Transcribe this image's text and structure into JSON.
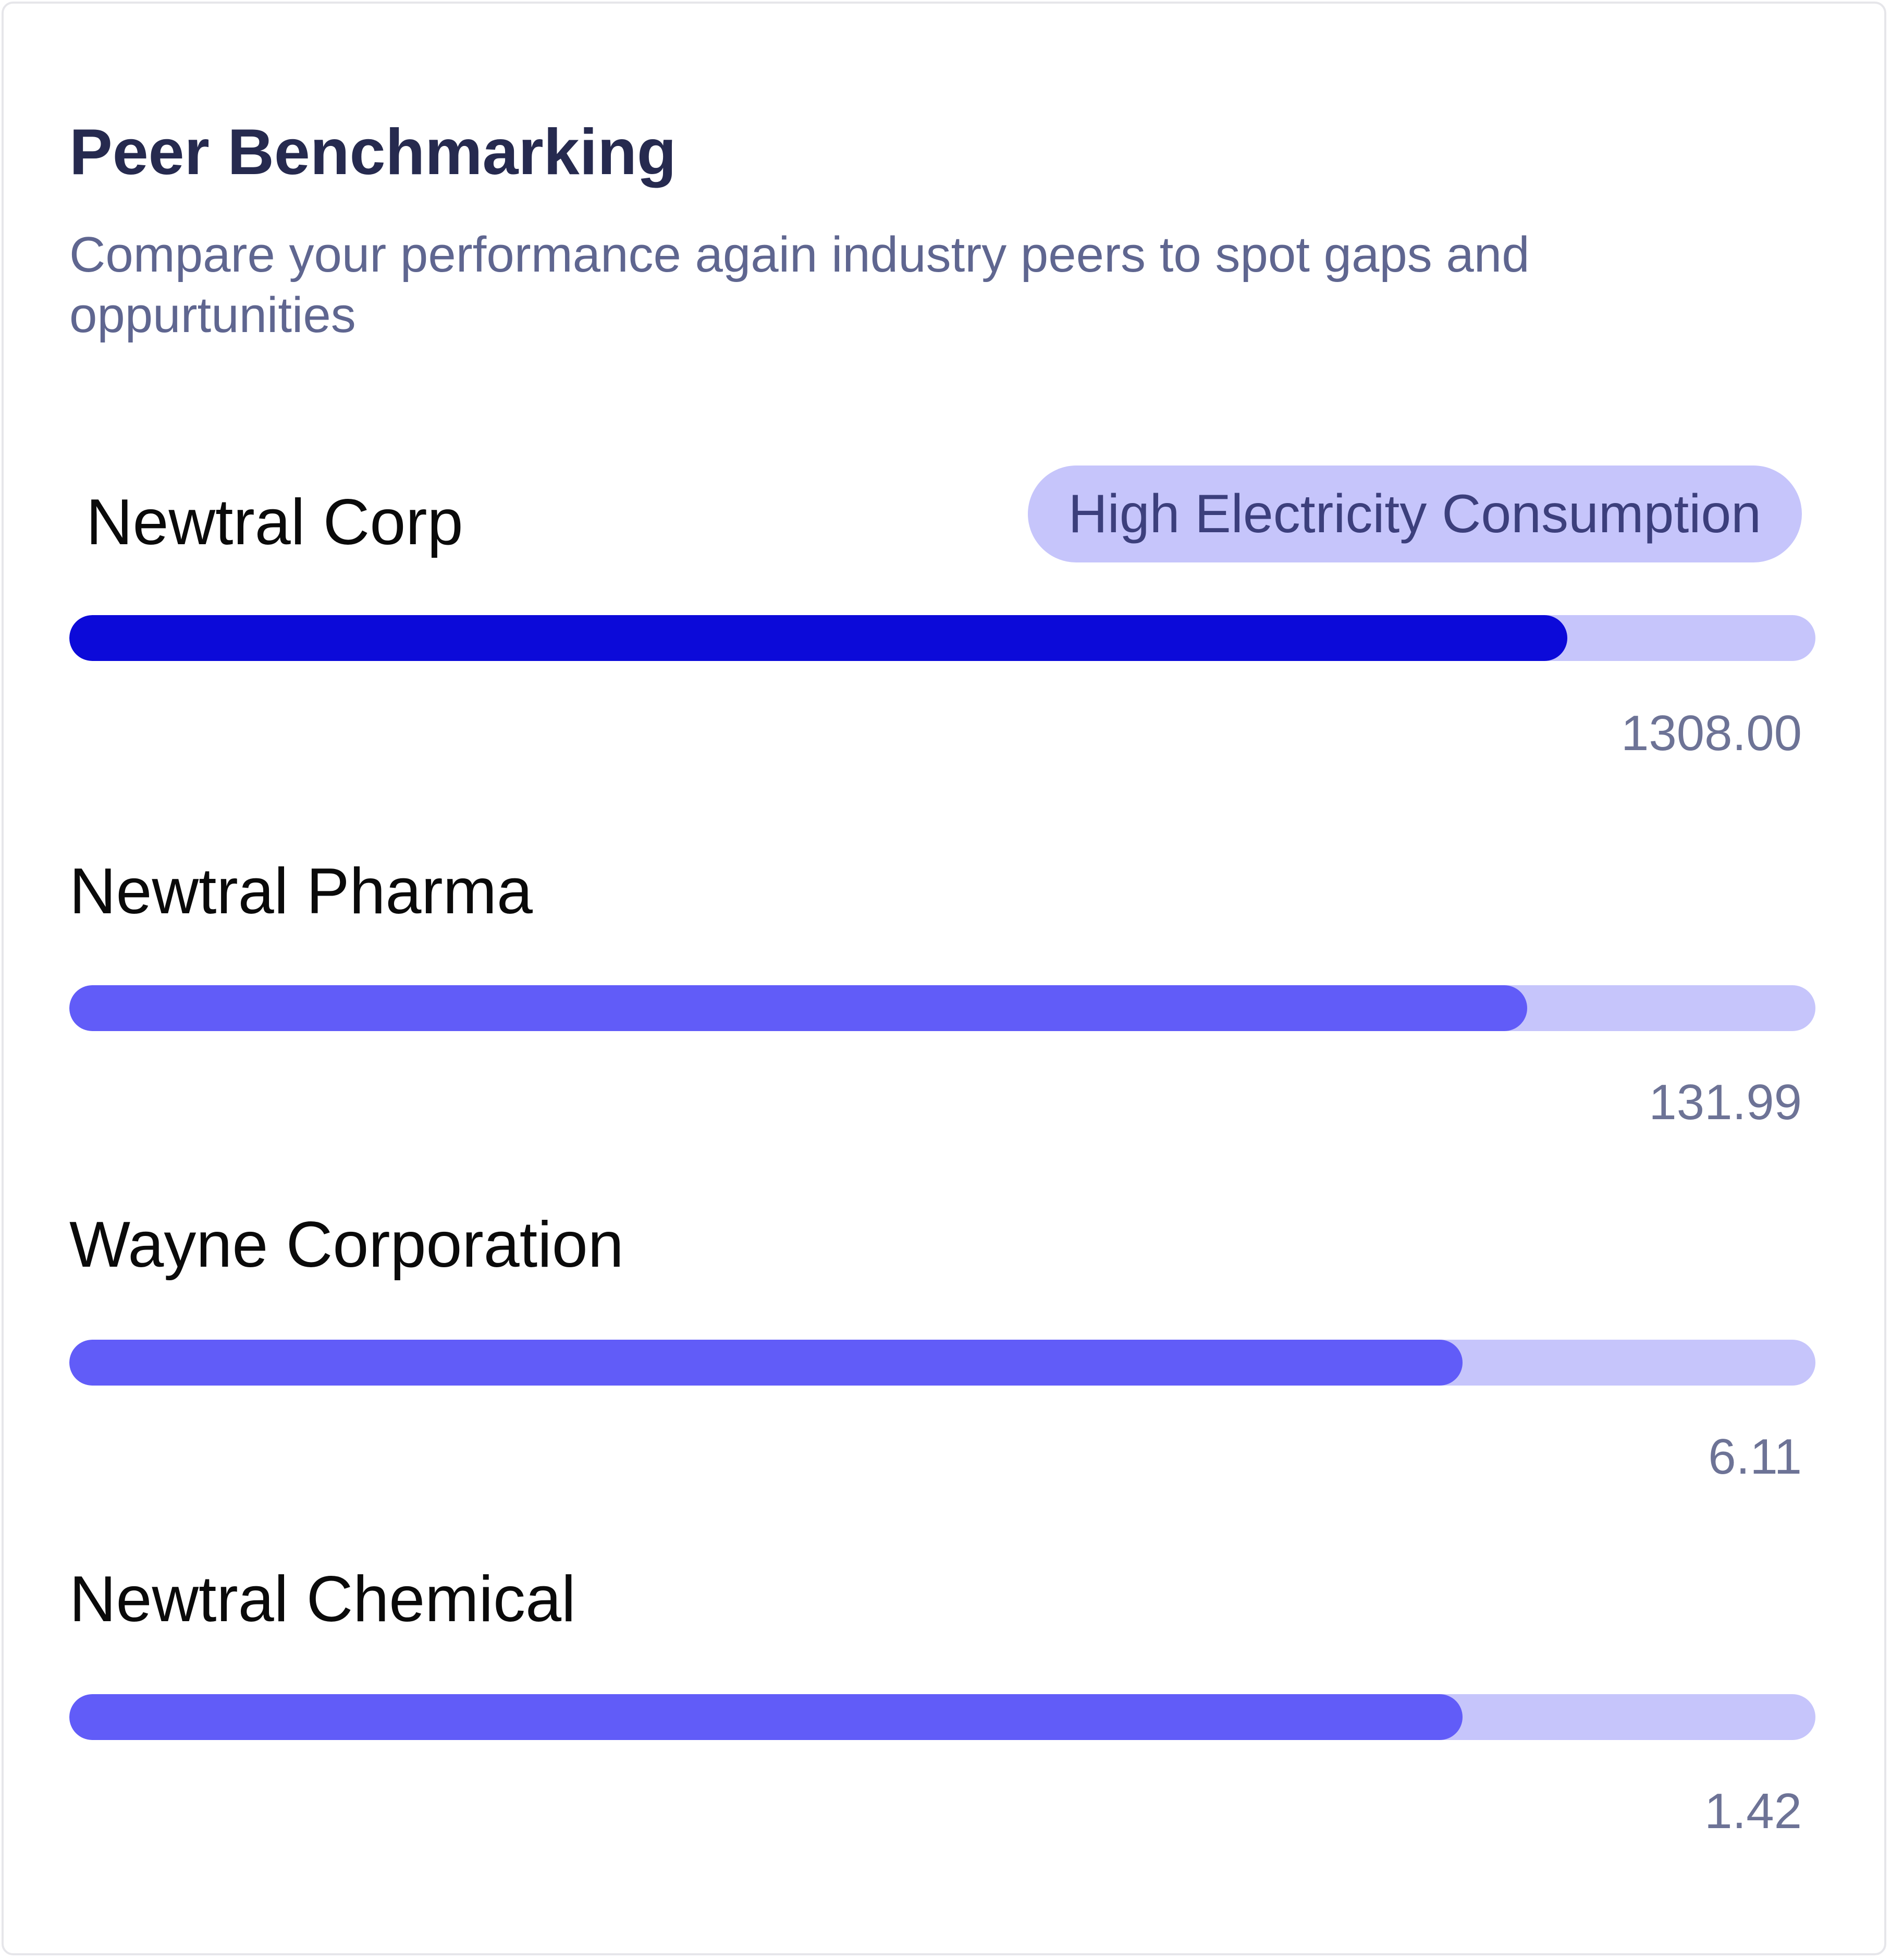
{
  "header": {
    "title": "Peer Benchmarking",
    "subtitle": "Compare your performance again industry peers to spot gaps and oppurtunities"
  },
  "badge": {
    "label": "High Electricity Consumption"
  },
  "colors": {
    "primary_bar": "#0c0ad9",
    "peer_bar": "#615cf8",
    "track": "#c6c5fb",
    "badge_bg": "#c6c5fb",
    "title": "#262a4f",
    "subtitle": "#5f6690",
    "value": "#6d7396"
  },
  "peers": [
    {
      "name": "Newtral Corp",
      "value": "1308.00",
      "fill_fraction": 0.858
    },
    {
      "name": "Newtral Pharma",
      "value": "131.99",
      "fill_fraction": 0.835
    },
    {
      "name": "Wayne Corporation",
      "value": "6.11",
      "fill_fraction": 0.798
    },
    {
      "name": "Newtral Chemical",
      "value": "1.42",
      "fill_fraction": 0.798
    }
  ]
}
